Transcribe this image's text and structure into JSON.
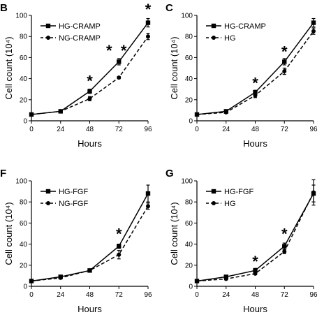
{
  "chart_data": [
    {
      "panel": "B",
      "type": "line",
      "xlabel": "Hours",
      "ylabel": "Cell count (10⁴)",
      "xlim": [
        0,
        96
      ],
      "ylim": [
        0,
        100
      ],
      "x_ticks": [
        0,
        24,
        48,
        72,
        96
      ],
      "y_ticks": [
        0,
        20,
        40,
        60,
        80,
        100
      ],
      "legend_position": "upper-left",
      "x": [
        0,
        24,
        48,
        72,
        96
      ],
      "series": [
        {
          "name": "HG-CRAMP",
          "style": "solid",
          "marker": "square",
          "values": [
            6,
            9,
            28,
            56,
            93
          ],
          "errors": [
            1,
            1,
            2,
            3,
            4
          ]
        },
        {
          "name": "NG-CRAMP",
          "style": "dashed",
          "marker": "circle",
          "values": [
            6,
            9,
            21,
            41,
            80
          ],
          "errors": [
            1,
            1,
            2,
            1,
            3
          ]
        }
      ],
      "significance": [
        {
          "x": 48,
          "y": 38,
          "label": "*"
        },
        {
          "x": 64,
          "y": 67,
          "label": "*"
        },
        {
          "x": 76,
          "y": 67,
          "label": "*"
        },
        {
          "x": 96,
          "y": 106,
          "label": "*"
        }
      ]
    },
    {
      "panel": "C",
      "type": "line",
      "xlabel": "Hours",
      "ylabel": "Cell count (10⁴)",
      "xlim": [
        0,
        96
      ],
      "ylim": [
        0,
        100
      ],
      "x_ticks": [
        0,
        24,
        48,
        72,
        96
      ],
      "y_ticks": [
        0,
        20,
        40,
        60,
        80,
        100
      ],
      "legend_position": "upper-left",
      "x": [
        0,
        24,
        48,
        72,
        96
      ],
      "series": [
        {
          "name": "HG-CRAMP",
          "style": "solid",
          "marker": "square",
          "values": [
            6,
            9,
            27,
            56,
            93
          ],
          "errors": [
            1,
            1,
            2,
            3,
            4
          ]
        },
        {
          "name": "HG",
          "style": "dashed",
          "marker": "circle",
          "values": [
            6,
            8,
            24,
            47,
            85
          ],
          "errors": [
            1,
            1,
            2,
            3,
            3
          ]
        }
      ],
      "significance": [
        {
          "x": 48,
          "y": 36,
          "label": "*"
        },
        {
          "x": 72,
          "y": 66,
          "label": "*"
        }
      ]
    },
    {
      "panel": "F",
      "type": "line",
      "xlabel": "Hours",
      "ylabel": "Cell count (10⁴)",
      "xlim": [
        0,
        96
      ],
      "ylim": [
        0,
        100
      ],
      "x_ticks": [
        0,
        24,
        48,
        72,
        96
      ],
      "y_ticks": [
        0,
        20,
        40,
        60,
        80,
        100
      ],
      "legend_position": "upper-left",
      "x": [
        0,
        24,
        48,
        72,
        96
      ],
      "series": [
        {
          "name": "HG-FGF",
          "style": "solid",
          "marker": "square",
          "values": [
            5,
            9,
            15,
            38,
            88
          ],
          "errors": [
            1,
            1,
            1,
            2,
            8
          ]
        },
        {
          "name": "NG-FGF",
          "style": "dashed",
          "marker": "circle",
          "values": [
            5,
            8,
            15,
            30,
            76
          ],
          "errors": [
            1,
            1,
            1,
            4,
            3
          ]
        }
      ],
      "significance": [
        {
          "x": 72,
          "y": 50,
          "label": "*"
        }
      ]
    },
    {
      "panel": "G",
      "type": "line",
      "xlabel": "Hours",
      "ylabel": "Cell count (10⁴)",
      "xlim": [
        0,
        96
      ],
      "ylim": [
        0,
        100
      ],
      "x_ticks": [
        0,
        24,
        48,
        72,
        96
      ],
      "y_ticks": [
        0,
        20,
        40,
        60,
        80,
        100
      ],
      "legend_position": "upper-left",
      "x": [
        0,
        24,
        48,
        72,
        96
      ],
      "series": [
        {
          "name": "HG-FGF",
          "style": "solid",
          "marker": "square",
          "values": [
            5,
            9,
            15,
            38,
            88
          ],
          "errors": [
            1,
            1,
            2,
            3,
            8
          ]
        },
        {
          "name": "HG",
          "style": "dashed",
          "marker": "circle",
          "values": [
            5,
            7,
            12,
            33,
            89
          ],
          "errors": [
            1,
            1,
            1,
            2,
            12
          ]
        }
      ],
      "significance": [
        {
          "x": 48,
          "y": 24,
          "label": "*"
        },
        {
          "x": 72,
          "y": 50,
          "label": "*"
        }
      ]
    }
  ]
}
